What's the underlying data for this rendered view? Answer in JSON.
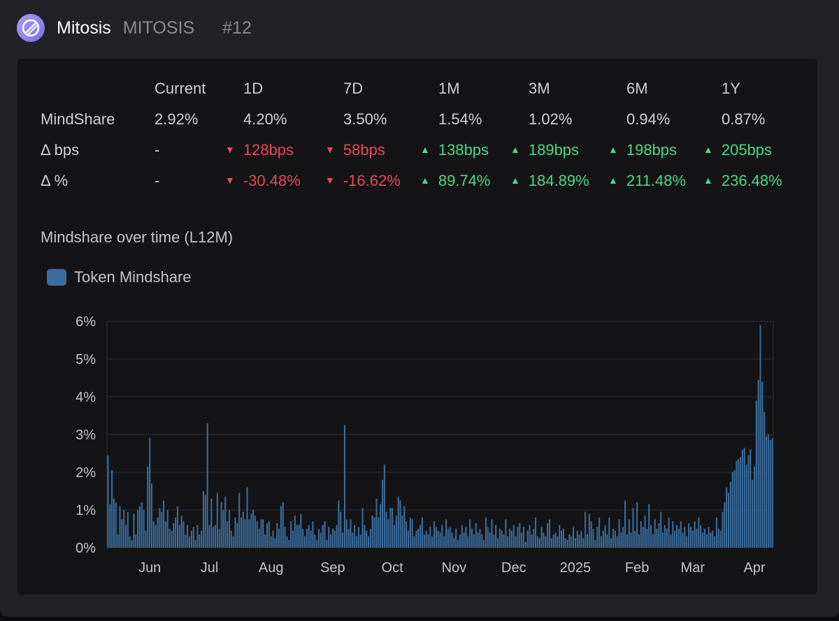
{
  "header": {
    "name": "Mitosis",
    "ticker": "MITOSIS",
    "rank": "#12"
  },
  "metrics": {
    "columns": [
      "Current",
      "1D",
      "7D",
      "1M",
      "3M",
      "6M",
      "1Y"
    ],
    "rows": [
      {
        "label": "MindShare",
        "cells": [
          {
            "text": "2.92%",
            "dir": "none"
          },
          {
            "text": "4.20%",
            "dir": "none"
          },
          {
            "text": "3.50%",
            "dir": "none"
          },
          {
            "text": "1.54%",
            "dir": "none"
          },
          {
            "text": "1.02%",
            "dir": "none"
          },
          {
            "text": "0.94%",
            "dir": "none"
          },
          {
            "text": "0.87%",
            "dir": "none"
          }
        ]
      },
      {
        "label": "Δ bps",
        "cells": [
          {
            "text": "-",
            "dir": "none"
          },
          {
            "text": "128bps",
            "dir": "down"
          },
          {
            "text": "58bps",
            "dir": "down"
          },
          {
            "text": "138bps",
            "dir": "up"
          },
          {
            "text": "189bps",
            "dir": "up"
          },
          {
            "text": "198bps",
            "dir": "up"
          },
          {
            "text": "205bps",
            "dir": "up"
          }
        ]
      },
      {
        "label": "Δ %",
        "cells": [
          {
            "text": "-",
            "dir": "none"
          },
          {
            "text": "-30.48%",
            "dir": "down"
          },
          {
            "text": "-16.62%",
            "dir": "down"
          },
          {
            "text": "89.74%",
            "dir": "up"
          },
          {
            "text": "184.89%",
            "dir": "up"
          },
          {
            "text": "211.48%",
            "dir": "up"
          },
          {
            "text": "236.48%",
            "dir": "up"
          }
        ]
      }
    ],
    "colors": {
      "up": "#4fd787",
      "down": "#e34b56"
    }
  },
  "chart_title": "Mindshare over time (L12M)",
  "legend_label": "Token Mindshare",
  "colors": {
    "bar": "#3b6d9c",
    "grid": "#2e2f35",
    "panel": "#141417"
  },
  "chart_data": {
    "type": "bar",
    "title": "Mindshare over time (L12M)",
    "series": [
      {
        "name": "Token Mindshare"
      }
    ],
    "ylim": [
      0,
      6
    ],
    "y_ticks": [
      0,
      1,
      2,
      3,
      4,
      5,
      6
    ],
    "y_tick_labels": [
      "0%",
      "1%",
      "2%",
      "3%",
      "4%",
      "5%",
      "6%"
    ],
    "x_tick_labels": [
      "Jun",
      "Jul",
      "Aug",
      "Sep",
      "Oct",
      "Nov",
      "Dec",
      "2025",
      "Feb",
      "Mar",
      "Apr"
    ],
    "x_tick_days": [
      21,
      51,
      82,
      113,
      143,
      174,
      204,
      235,
      266,
      294,
      325
    ],
    "values": [
      2.45,
      1.15,
      2.05,
      1.3,
      1.2,
      0.35,
      1.1,
      0.75,
      1.0,
      0.6,
      0.95,
      0.3,
      0.2,
      0.9,
      0.35,
      1.0,
      1.1,
      1.2,
      1.0,
      0.45,
      2.15,
      2.9,
      1.7,
      0.7,
      0.6,
      0.8,
      1.05,
      0.95,
      1.25,
      0.7,
      1.0,
      0.5,
      0.45,
      0.65,
      0.8,
      1.1,
      0.6,
      0.85,
      0.7,
      0.35,
      0.6,
      0.3,
      0.45,
      0.55,
      0.2,
      0.6,
      0.35,
      0.45,
      1.5,
      1.4,
      3.3,
      0.6,
      1.3,
      0.55,
      0.6,
      1.45,
      0.5,
      1.2,
      1.0,
      1.35,
      0.7,
      1.0,
      0.45,
      0.3,
      0.8,
      0.65,
      1.45,
      0.8,
      0.95,
      0.75,
      1.6,
      0.75,
      0.9,
      1.0,
      0.85,
      0.7,
      0.5,
      0.75,
      0.75,
      0.35,
      0.65,
      0.7,
      0.3,
      0.45,
      0.25,
      0.65,
      0.5,
      1.1,
      1.2,
      0.55,
      0.3,
      0.2,
      0.7,
      0.45,
      0.85,
      0.6,
      0.6,
      0.9,
      0.5,
      0.3,
      0.5,
      0.6,
      0.45,
      0.7,
      0.35,
      0.2,
      0.5,
      0.4,
      0.6,
      0.7,
      0.2,
      0.55,
      0.35,
      0.5,
      0.45,
      0.6,
      1.25,
      0.95,
      0.4,
      3.25,
      0.75,
      0.5,
      0.75,
      0.4,
      0.6,
      0.3,
      0.55,
      0.35,
      1.05,
      0.6,
      0.45,
      0.3,
      0.5,
      0.85,
      0.8,
      1.3,
      0.8,
      1.15,
      1.8,
      2.2,
      0.95,
      0.75,
      1.05,
      1.05,
      0.6,
      0.85,
      1.35,
      1.25,
      0.85,
      1.1,
      0.7,
      0.45,
      0.8,
      0.75,
      0.3,
      0.45,
      0.5,
      0.6,
      0.8,
      0.35,
      0.45,
      0.35,
      0.55,
      0.3,
      0.7,
      0.55,
      0.45,
      0.4,
      0.6,
      0.3,
      0.75,
      0.5,
      0.55,
      0.4,
      0.25,
      0.5,
      0.2,
      0.35,
      0.6,
      0.4,
      0.55,
      0.3,
      0.75,
      0.5,
      0.35,
      0.65,
      0.4,
      0.5,
      0.35,
      0.2,
      0.8,
      0.55,
      0.4,
      0.75,
      0.35,
      0.6,
      0.25,
      0.5,
      0.45,
      0.35,
      0.75,
      0.3,
      0.5,
      0.45,
      0.6,
      0.3,
      0.55,
      0.65,
      0.4,
      0.55,
      0.15,
      0.45,
      0.6,
      0.35,
      0.5,
      0.8,
      0.3,
      0.25,
      0.55,
      0.4,
      0.3,
      0.65,
      0.75,
      0.25,
      0.35,
      0.4,
      0.3,
      0.6,
      0.45,
      0.5,
      0.25,
      0.2,
      0.35,
      0.3,
      0.55,
      0.25,
      0.45,
      0.35,
      0.45,
      0.25,
      0.95,
      0.35,
      0.9,
      0.7,
      0.5,
      0.2,
      0.55,
      0.8,
      0.3,
      0.45,
      0.6,
      0.35,
      0.8,
      0.25,
      0.5,
      0.45,
      0.3,
      0.75,
      0.4,
      0.55,
      1.25,
      0.35,
      0.75,
      0.4,
      1.05,
      0.45,
      1.2,
      0.35,
      0.7,
      0.55,
      0.85,
      0.5,
      1.15,
      0.6,
      0.35,
      0.75,
      0.5,
      0.65,
      0.95,
      0.4,
      0.6,
      0.5,
      0.8,
      0.35,
      0.7,
      0.45,
      0.6,
      0.5,
      0.7,
      0.4,
      0.55,
      0.3,
      0.65,
      0.55,
      0.45,
      0.7,
      0.5,
      0.8,
      0.6,
      0.4,
      0.5,
      0.35,
      0.55,
      0.4,
      0.45,
      0.3,
      0.8,
      0.5,
      0.45,
      0.95,
      1.2,
      1.6,
      1.45,
      1.75,
      2.0,
      2.05,
      2.3,
      2.35,
      2.4,
      2.6,
      2.65,
      2.2,
      2.45,
      2.6,
      1.8,
      2.15,
      3.9,
      4.45,
      5.9,
      4.4,
      3.6,
      2.95,
      3.0,
      2.85,
      2.9
    ]
  }
}
